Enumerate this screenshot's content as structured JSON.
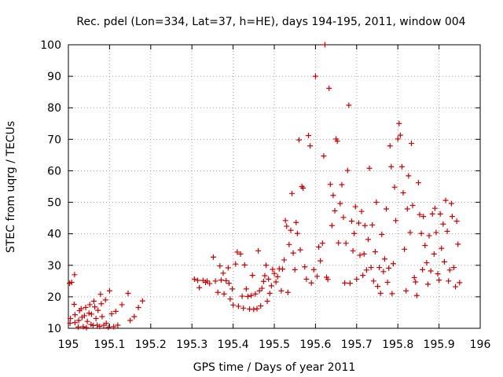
{
  "chart_data": {
    "type": "scatter",
    "title": "Rec. pdel (Lon=334, Lat=37, h=HE), days 194-195, 2011, window 004",
    "xlabel": "GPS time / Days of year 2011",
    "ylabel": "STEC from uqrg / TECUs",
    "xlim": [
      195,
      196
    ],
    "ylim": [
      10,
      100
    ],
    "xticks": [
      195,
      195.1,
      195.2,
      195.3,
      195.4,
      195.5,
      195.6,
      195.7,
      195.8,
      195.9,
      196
    ],
    "xtick_labels": [
      "195",
      "195.1",
      "195.2",
      "195.3",
      "195.4",
      "195.5",
      "195.6",
      "195.7",
      "195.8",
      "195.9",
      "196"
    ],
    "yticks": [
      10,
      20,
      30,
      40,
      50,
      60,
      70,
      80,
      90,
      100
    ],
    "ytick_labels": [
      "10",
      "20",
      "30",
      "40",
      "50",
      "60",
      "70",
      "80",
      "90",
      "100"
    ],
    "grid": true,
    "marker": "+",
    "color": "#cc0000",
    "points": [
      [
        195.003,
        24.3
      ],
      [
        195.004,
        11.6
      ],
      [
        195.005,
        13.1
      ],
      [
        195.008,
        24.6
      ],
      [
        195.015,
        27.0
      ],
      [
        195.014,
        17.6
      ],
      [
        195.016,
        11.8
      ],
      [
        195.016,
        14.3
      ],
      [
        195.024,
        10.4
      ],
      [
        195.025,
        12.5
      ],
      [
        195.027,
        15.6
      ],
      [
        195.031,
        16.2
      ],
      [
        195.033,
        13.5
      ],
      [
        195.036,
        10.5
      ],
      [
        195.039,
        14.0
      ],
      [
        195.042,
        16.6
      ],
      [
        195.044,
        10.2
      ],
      [
        195.046,
        12.2
      ],
      [
        195.05,
        14.8
      ],
      [
        195.052,
        17.5
      ],
      [
        195.055,
        11.2
      ],
      [
        195.056,
        14.5
      ],
      [
        195.06,
        10.9
      ],
      [
        195.062,
        18.6
      ],
      [
        195.064,
        16.8
      ],
      [
        195.067,
        13.1
      ],
      [
        195.07,
        11.0
      ],
      [
        195.072,
        15.7
      ],
      [
        195.076,
        10.6
      ],
      [
        195.078,
        20.8
      ],
      [
        195.08,
        17.8
      ],
      [
        195.082,
        13.7
      ],
      [
        195.086,
        11.0
      ],
      [
        195.09,
        19.0
      ],
      [
        195.092,
        11.6
      ],
      [
        195.097,
        10.3
      ],
      [
        195.1,
        21.9
      ],
      [
        195.105,
        14.6
      ],
      [
        195.11,
        10.5
      ],
      [
        195.115,
        15.4
      ],
      [
        195.12,
        11.0
      ],
      [
        195.13,
        17.5
      ],
      [
        195.145,
        21.1
      ],
      [
        195.15,
        12.5
      ],
      [
        195.16,
        13.7
      ],
      [
        195.17,
        16.6
      ],
      [
        195.18,
        18.7
      ],
      [
        195.306,
        25.6
      ],
      [
        195.314,
        25.2
      ],
      [
        195.318,
        22.9
      ],
      [
        195.327,
        25.2
      ],
      [
        195.333,
        24.6
      ],
      [
        195.337,
        25.0
      ],
      [
        195.343,
        24.2
      ],
      [
        195.352,
        32.6
      ],
      [
        195.357,
        25.0
      ],
      [
        195.363,
        21.4
      ],
      [
        195.368,
        29.8
      ],
      [
        195.371,
        25.3
      ],
      [
        195.376,
        27.5
      ],
      [
        195.378,
        20.9
      ],
      [
        195.383,
        25.1
      ],
      [
        195.388,
        29.2
      ],
      [
        195.39,
        24.3
      ],
      [
        195.393,
        19.3
      ],
      [
        195.398,
        22.5
      ],
      [
        195.4,
        17.4
      ],
      [
        195.406,
        30.4
      ],
      [
        195.41,
        34.2
      ],
      [
        195.413,
        17.0
      ],
      [
        195.418,
        33.6
      ],
      [
        195.422,
        20.2
      ],
      [
        195.425,
        16.4
      ],
      [
        195.428,
        30.1
      ],
      [
        195.432,
        22.5
      ],
      [
        195.436,
        20.1
      ],
      [
        195.44,
        16.1
      ],
      [
        195.444,
        20.4
      ],
      [
        195.447,
        26.8
      ],
      [
        195.45,
        16.0
      ],
      [
        195.454,
        20.9
      ],
      [
        195.458,
        16.2
      ],
      [
        195.461,
        34.6
      ],
      [
        195.464,
        21.9
      ],
      [
        195.467,
        17.1
      ],
      [
        195.47,
        22.7
      ],
      [
        195.474,
        24.9
      ],
      [
        195.477,
        26.7
      ],
      [
        195.48,
        30.0
      ],
      [
        195.483,
        18.6
      ],
      [
        195.486,
        25.6
      ],
      [
        195.489,
        21.1
      ],
      [
        195.493,
        23.5
      ],
      [
        195.496,
        28.7
      ],
      [
        195.5,
        27.4
      ],
      [
        195.504,
        24.7
      ],
      [
        195.508,
        26.4
      ],
      [
        195.512,
        28.9
      ],
      [
        195.517,
        21.9
      ],
      [
        195.52,
        28.8
      ],
      [
        195.524,
        31.7
      ],
      [
        195.527,
        44.2
      ],
      [
        195.53,
        42.4
      ],
      [
        195.533,
        21.4
      ],
      [
        195.536,
        36.6
      ],
      [
        195.54,
        41.1
      ],
      [
        195.543,
        52.8
      ],
      [
        195.546,
        33.9
      ],
      [
        195.55,
        28.6
      ],
      [
        195.553,
        43.6
      ],
      [
        195.556,
        40.1
      ],
      [
        195.56,
        69.8
      ],
      [
        195.563,
        34.9
      ],
      [
        195.567,
        55.0
      ],
      [
        195.57,
        54.5
      ],
      [
        195.574,
        29.5
      ],
      [
        195.578,
        25.6
      ],
      [
        195.583,
        71.2
      ],
      [
        195.587,
        67.9
      ],
      [
        195.59,
        24.4
      ],
      [
        195.596,
        28.6
      ],
      [
        195.6,
        90.0
      ],
      [
        195.604,
        26.5
      ],
      [
        195.608,
        35.8
      ],
      [
        195.612,
        31.4
      ],
      [
        195.617,
        37.0
      ],
      [
        195.62,
        64.7
      ],
      [
        195.623,
        100.0
      ],
      [
        195.627,
        26.2
      ],
      [
        195.63,
        25.5
      ],
      [
        195.633,
        86.2
      ],
      [
        195.636,
        55.7
      ],
      [
        195.64,
        42.6
      ],
      [
        195.643,
        52.2
      ],
      [
        195.647,
        47.3
      ],
      [
        195.65,
        70.1
      ],
      [
        195.653,
        69.4
      ],
      [
        195.656,
        37.1
      ],
      [
        195.66,
        49.6
      ],
      [
        195.664,
        55.6
      ],
      [
        195.668,
        45.2
      ],
      [
        195.671,
        24.4
      ],
      [
        195.674,
        37.0
      ],
      [
        195.678,
        60.1
      ],
      [
        195.681,
        80.8
      ],
      [
        195.684,
        24.3
      ],
      [
        195.688,
        44.0
      ],
      [
        195.691,
        34.6
      ],
      [
        195.694,
        40.1
      ],
      [
        195.697,
        48.6
      ],
      [
        195.7,
        25.6
      ],
      [
        195.705,
        43.4
      ],
      [
        195.708,
        33.2
      ],
      [
        195.712,
        47.1
      ],
      [
        195.715,
        26.8
      ],
      [
        195.718,
        33.6
      ],
      [
        195.72,
        42.6
      ],
      [
        195.724,
        28.5
      ],
      [
        195.728,
        38.2
      ],
      [
        195.731,
        60.8
      ],
      [
        195.735,
        29.3
      ],
      [
        195.738,
        42.8
      ],
      [
        195.741,
        25.0
      ],
      [
        195.745,
        34.3
      ],
      [
        195.748,
        50.0
      ],
      [
        195.751,
        23.3
      ],
      [
        195.755,
        29.3
      ],
      [
        195.758,
        21.1
      ],
      [
        195.761,
        39.8
      ],
      [
        195.765,
        28.0
      ],
      [
        195.768,
        32.0
      ],
      [
        195.772,
        47.9
      ],
      [
        195.775,
        24.6
      ],
      [
        195.778,
        29.1
      ],
      [
        195.781,
        67.9
      ],
      [
        195.784,
        61.3
      ],
      [
        195.786,
        21.0
      ],
      [
        195.789,
        30.5
      ],
      [
        195.792,
        54.8
      ],
      [
        195.795,
        44.2
      ],
      [
        195.8,
        70.1
      ],
      [
        195.803,
        75.0
      ],
      [
        195.806,
        71.3
      ],
      [
        195.81,
        61.3
      ],
      [
        195.813,
        53.0
      ],
      [
        195.816,
        35.1
      ],
      [
        195.82,
        21.9
      ],
      [
        195.823,
        47.9
      ],
      [
        195.826,
        58.4
      ],
      [
        195.83,
        40.4
      ],
      [
        195.833,
        68.7
      ],
      [
        195.836,
        49.0
      ],
      [
        195.84,
        26.1
      ],
      [
        195.843,
        24.7
      ],
      [
        195.846,
        20.4
      ],
      [
        195.85,
        56.2
      ],
      [
        195.853,
        46.1
      ],
      [
        195.857,
        40.1
      ],
      [
        195.86,
        28.6
      ],
      [
        195.862,
        45.5
      ],
      [
        195.866,
        36.3
      ],
      [
        195.87,
        30.8
      ],
      [
        195.873,
        24.0
      ],
      [
        195.876,
        39.4
      ],
      [
        195.88,
        28.2
      ],
      [
        195.884,
        46.3
      ],
      [
        195.888,
        33.6
      ],
      [
        195.89,
        48.1
      ],
      [
        195.893,
        40.4
      ],
      [
        195.897,
        27.3
      ],
      [
        195.9,
        25.3
      ],
      [
        195.903,
        46.3
      ],
      [
        195.906,
        35.4
      ],
      [
        195.91,
        43.1
      ],
      [
        195.913,
        31.1
      ],
      [
        195.916,
        50.6
      ],
      [
        195.92,
        40.8
      ],
      [
        195.923,
        25.0
      ],
      [
        195.926,
        28.5
      ],
      [
        195.93,
        49.6
      ],
      [
        195.932,
        45.5
      ],
      [
        195.936,
        29.3
      ],
      [
        195.94,
        23.2
      ],
      [
        195.943,
        44.0
      ],
      [
        195.946,
        36.7
      ],
      [
        195.95,
        24.5
      ]
    ]
  }
}
